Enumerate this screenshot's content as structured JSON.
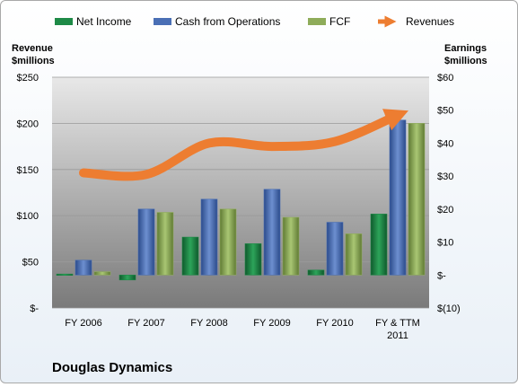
{
  "chart_data": {
    "type": "bar",
    "categories": [
      "FY 2006",
      "FY 2007",
      "FY 2008",
      "FY 2009",
      "FY 2010",
      "FY & TTM\n2011"
    ],
    "series": [
      {
        "name": "Net Income",
        "axis": "right",
        "color": "#1e8a47",
        "values": [
          0.3,
          -1.5,
          11.5,
          9.5,
          1.5,
          18.5
        ]
      },
      {
        "name": "Cash from Operations",
        "axis": "right",
        "color": "#4a6fb5",
        "values": [
          4.5,
          20,
          23,
          26,
          16,
          47
        ]
      },
      {
        "name": "FCF",
        "axis": "right",
        "color": "#8fac5a",
        "values": [
          1,
          19,
          20,
          17.5,
          12.5,
          46
        ]
      },
      {
        "name": "Revenues",
        "axis": "left",
        "type": "line",
        "color": "#ed7d31",
        "values": [
          31,
          30.5,
          40,
          39,
          40.5,
          48.5
        ],
        "values_unit": "right-axis scale"
      }
    ],
    "left_axis": {
      "title_lines": [
        "Revenue",
        "$millions"
      ],
      "ticks": [
        "$250",
        "$200",
        "$150",
        "$100",
        "$50",
        "$-"
      ],
      "ylim": [
        0,
        250
      ]
    },
    "right_axis": {
      "title_lines": [
        "Earnings",
        "$millions"
      ],
      "ticks": [
        "$60",
        "$50",
        "$40",
        "$30",
        "$20",
        "$10",
        "$-",
        "$(10)"
      ],
      "ylim": [
        -10,
        60
      ]
    },
    "legend": {
      "position": "top",
      "entries": [
        "Net Income",
        "Cash from Operations",
        "FCF",
        "Revenues"
      ]
    },
    "grid": true,
    "company": "Douglas Dynamics"
  }
}
